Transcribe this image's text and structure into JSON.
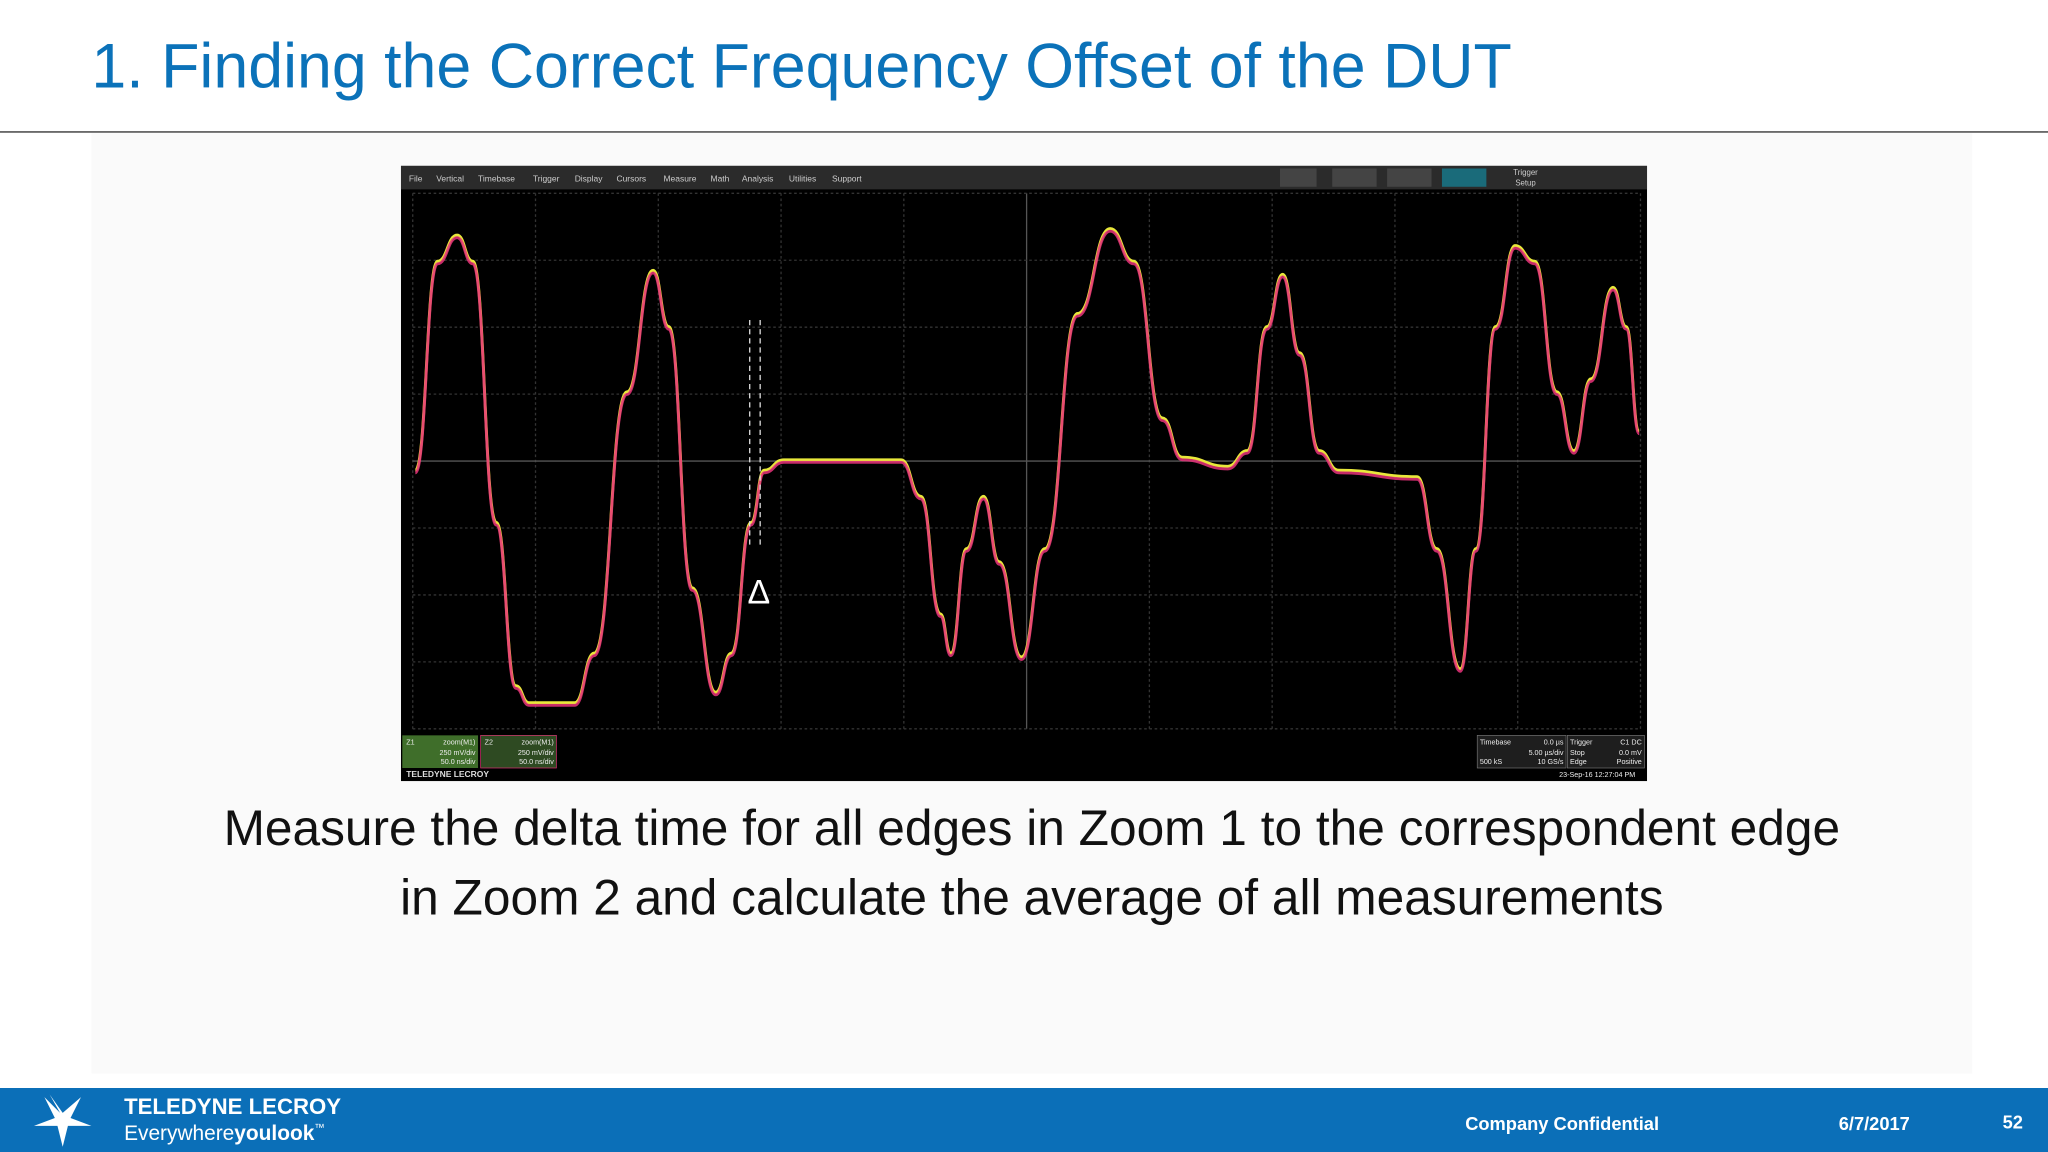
{
  "header": {
    "title": "1. Finding the Correct Frequency Offset of the DUT"
  },
  "scope": {
    "menu": [
      "File",
      "Vertical",
      "Timebase",
      "Trigger",
      "Display",
      "Cursors",
      "Measure",
      "Math",
      "Analysis",
      "Utilities",
      "Support"
    ],
    "trigger_setup": [
      "Trigger",
      "Setup"
    ],
    "cursor_label": "Δ",
    "zoom1": [
      "Z1",
      "zoom(M1)",
      "250 mV/div",
      "50.0 ns/div"
    ],
    "zoom2": [
      "Z2",
      "zoom(M1)",
      "250 mV/div",
      "50.0 ns/div"
    ],
    "brand": "TELEDYNE LECROY",
    "timebase": [
      "Timebase",
      "0.0 µs",
      "5.00 µs/div",
      "500 kS",
      "10 GS/s"
    ],
    "trigger": [
      "Trigger",
      "C1 DC",
      "Stop",
      "0.0 mV",
      "Edge",
      "Positive"
    ],
    "timestamp": "23-Sep-16 12:27:04 PM"
  },
  "body": {
    "lines": [
      "Measure the delta time for all edges in Zoom 1 to the correspondent edge",
      "in Zoom 2 and calculate the average of all measurements"
    ]
  },
  "footer": {
    "brand": "TELEDYNE LECROY",
    "tagline_pre": "Everywhere",
    "tagline_bold": "youlook",
    "tagline_tm": "™",
    "confidential": "Company Confidential",
    "date": "6/7/2017",
    "page": "52"
  }
}
